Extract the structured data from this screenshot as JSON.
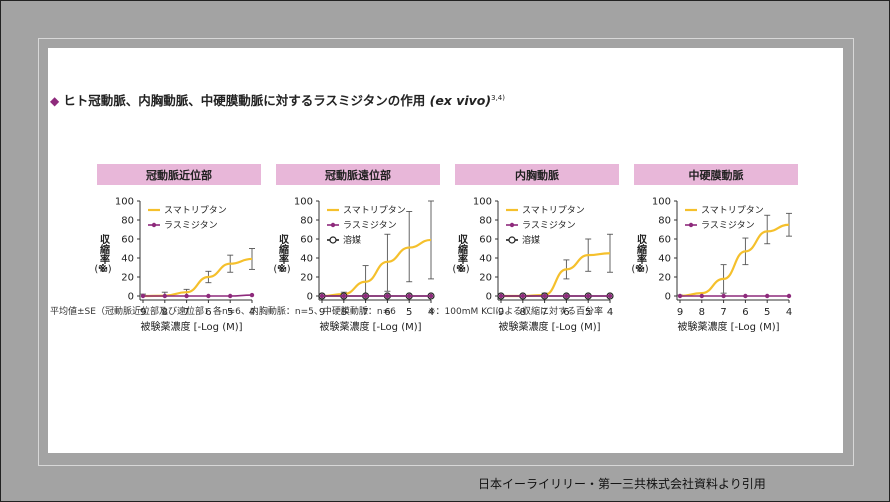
{
  "title": "ヒト冠動脈、内胸動脈、中硬膜動脈に対するラスミジタンの作用",
  "title_italic": "(ex vivo)",
  "title_ref": "3,4)",
  "footnote": "平均値±SE（冠動脈近位部及び遠位部：各n=6、内胸動脈：n=5、中硬膜動脈：n=6",
  "footnote2": "※：100mM KClによる収縮に対する百分率",
  "source": "日本イーライリリー・第一三共株式会社資料より引用",
  "colors": {
    "sumatriptan": "#f5c02c",
    "lasmiditan": "#8e2a7c",
    "vehicle": "#222222",
    "header_bg": "#e8b7d9",
    "diamond": "#8e2a7c"
  },
  "chart_data": [
    {
      "type": "line",
      "title": "冠動脈近位部",
      "xlabel": "被験薬濃度 [-Log (M)]",
      "ylabel": "収縮率※",
      "yunit": "(%)",
      "x_ticks": [
        9,
        8,
        7,
        6,
        5,
        4
      ],
      "y_ticks": [
        0,
        20,
        40,
        60,
        80,
        100
      ],
      "xlim": [
        9,
        4
      ],
      "ylim": [
        0,
        100
      ],
      "series": [
        {
          "name": "スマトリプタン",
          "key": "sumatriptan",
          "x": [
            9,
            8,
            7,
            6,
            5,
            4
          ],
          "y": [
            0,
            1,
            3,
            20,
            34,
            39
          ],
          "err": [
            2,
            3,
            4,
            6,
            9,
            11
          ],
          "curve": [
            0,
            0.3,
            4,
            20,
            34,
            39
          ]
        },
        {
          "name": "ラスミジタン",
          "key": "lasmiditan",
          "x": [
            9,
            8,
            7,
            6,
            5,
            4
          ],
          "y": [
            0,
            0,
            0,
            0,
            0,
            1
          ],
          "err": [
            0,
            0,
            0,
            0,
            0,
            0
          ]
        }
      ]
    },
    {
      "type": "line",
      "title": "冠動脈遠位部",
      "xlabel": "被験薬濃度 [-Log (M)]",
      "ylabel": "収縮率※",
      "yunit": "(%)",
      "x_ticks": [
        9,
        8,
        7,
        6,
        5,
        4
      ],
      "y_ticks": [
        0,
        20,
        40,
        60,
        80,
        100
      ],
      "xlim": [
        9,
        4
      ],
      "ylim": [
        0,
        100
      ],
      "series": [
        {
          "name": "スマトリプタン",
          "key": "sumatriptan",
          "x": [
            9,
            8,
            7,
            6,
            5,
            4
          ],
          "y": [
            0,
            0,
            12,
            35,
            52,
            59
          ],
          "err": [
            2,
            4,
            20,
            30,
            37,
            41
          ],
          "curve": [
            0,
            2,
            15,
            36,
            51,
            59
          ]
        },
        {
          "name": "ラスミジタン",
          "key": "lasmiditan",
          "x": [
            9,
            8,
            7,
            6,
            5,
            4
          ],
          "y": [
            0,
            0,
            0,
            0,
            0,
            0
          ],
          "err": [
            0,
            0,
            0,
            0,
            0,
            0
          ]
        },
        {
          "name": "溶媒",
          "key": "vehicle",
          "x": [
            9,
            8,
            7,
            6,
            5,
            4
          ],
          "y": [
            0,
            0,
            0,
            0,
            0,
            0
          ],
          "err": [
            0,
            0,
            0,
            0,
            0,
            0
          ]
        }
      ]
    },
    {
      "type": "line",
      "title": "内胸動脈",
      "xlabel": "被験薬濃度 [-Log (M)]",
      "ylabel": "収縮率※",
      "yunit": "(%)",
      "x_ticks": [
        9,
        8,
        7,
        6,
        5,
        4
      ],
      "y_ticks": [
        0,
        20,
        40,
        60,
        80,
        100
      ],
      "xlim": [
        9,
        4
      ],
      "ylim": [
        0,
        100
      ],
      "series": [
        {
          "name": "スマトリプタン",
          "key": "sumatriptan",
          "x": [
            9,
            8,
            7,
            6,
            5,
            4
          ],
          "y": [
            0,
            0,
            1,
            28,
            43,
            45
          ],
          "err": [
            0,
            0,
            2,
            10,
            17,
            20
          ],
          "curve": [
            0,
            0,
            1,
            28,
            43,
            45
          ]
        },
        {
          "name": "ラスミジタン",
          "key": "lasmiditan",
          "x": [
            9,
            8,
            7,
            6,
            5,
            4
          ],
          "y": [
            0,
            0,
            0,
            0,
            0,
            0
          ],
          "err": [
            0,
            0,
            0,
            0,
            0,
            0
          ]
        },
        {
          "name": "溶媒",
          "key": "vehicle",
          "x": [
            9,
            8,
            7,
            6,
            5,
            4
          ],
          "y": [
            0,
            0,
            0,
            0,
            0,
            0
          ],
          "err": [
            0,
            0,
            0,
            0,
            0,
            0
          ]
        }
      ]
    },
    {
      "type": "line",
      "title": "中硬膜動脈",
      "xlabel": "被験薬濃度 [-Log (M)]",
      "ylabel": "収縮率※",
      "yunit": "(%)",
      "x_ticks": [
        9,
        8,
        7,
        6,
        5,
        4
      ],
      "y_ticks": [
        0,
        20,
        40,
        60,
        80,
        100
      ],
      "xlim": [
        9,
        4
      ],
      "ylim": [
        0,
        100
      ],
      "series": [
        {
          "name": "スマトリプタン",
          "key": "sumatriptan",
          "x": [
            9,
            8,
            7,
            6,
            5,
            4
          ],
          "y": [
            0,
            1,
            18,
            47,
            70,
            75
          ],
          "err": [
            1,
            2,
            15,
            14,
            15,
            12
          ],
          "curve": [
            0,
            3,
            18,
            47,
            68,
            75
          ]
        },
        {
          "name": "ラスミジタン",
          "key": "lasmiditan",
          "x": [
            9,
            8,
            7,
            6,
            5,
            4
          ],
          "y": [
            0,
            0,
            0,
            0,
            0,
            0
          ],
          "err": [
            0,
            0,
            0,
            0,
            0,
            0
          ]
        }
      ]
    }
  ]
}
